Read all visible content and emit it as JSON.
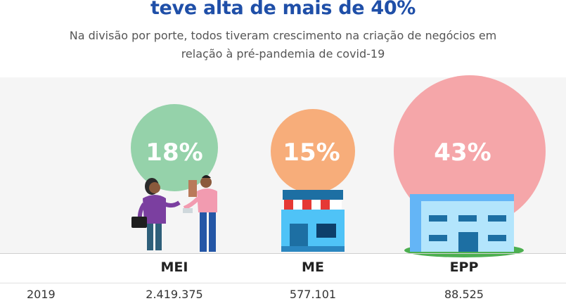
{
  "header": {
    "title": "teve alta de mais de 40%",
    "subtitle_line1": "Na divisão por porte, todos tiveram crescimento na criação de negócios em",
    "subtitle_line2": "relação à pré-pandemia de covid-19"
  },
  "colors": {
    "title": "#1f4fa8",
    "mei": "#95d2aa",
    "me": "#f7ad7a",
    "epp": "#f5a6a9"
  },
  "chart_data": {
    "type": "bubble",
    "categories": [
      "MEI",
      "ME",
      "EPP"
    ],
    "growth_percent": [
      18,
      15,
      43
    ],
    "growth_labels": [
      "18%",
      "15%",
      "43%"
    ],
    "table": {
      "row_label": "2019",
      "values": [
        "2.419.375",
        "577.101",
        "88.525"
      ]
    }
  },
  "icons": [
    "people-exchange-illustration",
    "shop-storefront-icon",
    "office-building-icon"
  ]
}
